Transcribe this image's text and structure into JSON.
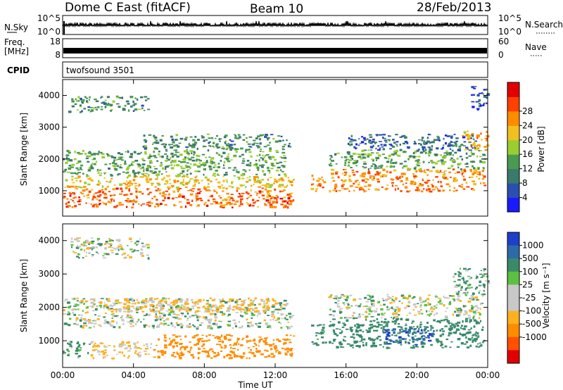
{
  "header": {
    "title": "Dome C East (fitACF)",
    "beam": "Beam 10",
    "date": "28/Feb/2013"
  },
  "panels": {
    "nsky": {
      "label": "N.Sky",
      "left_ticks": [
        "10^5",
        "10^0"
      ],
      "right_label": "N.Search",
      "right_ticks": [
        "10^5",
        "10^0"
      ]
    },
    "freq": {
      "label_line1": "Freq.",
      "label_line2": "[MHz]",
      "left_ticks": [
        "18",
        "8"
      ],
      "right_label": "Nave",
      "right_ticks": [
        "60",
        "0"
      ]
    },
    "cpid": {
      "label": "CPID",
      "value": "twofsound 3501"
    }
  },
  "power_panel": {
    "ylabel": "Slant Range [km]",
    "y_ticks": [
      "1000",
      "2000",
      "3000",
      "4000"
    ]
  },
  "velocity_panel": {
    "ylabel": "Slant Range [km]",
    "y_ticks": [
      "1000",
      "2000",
      "3000",
      "4000"
    ]
  },
  "power_scale": {
    "label": "Power [dB]",
    "ticks": [
      "4",
      "8",
      "12",
      "16",
      "20",
      "24",
      "28"
    ],
    "colors": [
      "#1a1aff",
      "#2a4fb0",
      "#3a7a6a",
      "#4a9a52",
      "#9acd32",
      "#f0c020",
      "#ff8c00",
      "#ff4000",
      "#e00000"
    ]
  },
  "velocity_scale": {
    "label": "Velocity [m s⁻¹]",
    "ticks": [
      "1000",
      "500",
      "100",
      "25",
      "-25",
      "-100",
      "-500",
      "-1000"
    ],
    "colors": [
      "#1e3fc8",
      "#2e6aa8",
      "#3a8a6a",
      "#5cc040",
      "#c8c8c8",
      "#c8c8c8",
      "#ffb020",
      "#ff8c00",
      "#ff5000",
      "#e00000"
    ]
  },
  "time_axis": {
    "label": "Time UT",
    "ticks": [
      "00:00",
      "04:00",
      "08:00",
      "12:00",
      "16:00",
      "20:00",
      "00:00"
    ]
  },
  "chart_data": [
    {
      "type": "heatmap",
      "title": "",
      "xlabel": "",
      "ylabel": "Slant Range [km]",
      "x_range": [
        "00:00",
        "24:00"
      ],
      "ylim": [
        200,
        4500
      ],
      "colorbar": {
        "label": "Power [dB]",
        "range": [
          0,
          32
        ]
      },
      "regions": [
        {
          "t0": 0.0,
          "t1": 13.0,
          "r0": 500,
          "r1": 1100,
          "value": 28
        },
        {
          "t0": 0.0,
          "t1": 13.0,
          "r0": 1100,
          "r1": 1500,
          "value": 22
        },
        {
          "t0": 0.0,
          "t1": 12.5,
          "r0": 1500,
          "r1": 2300,
          "value": 14
        },
        {
          "t0": 4.5,
          "t1": 12.8,
          "r0": 2300,
          "r1": 2800,
          "value": 12
        },
        {
          "t0": 0.3,
          "t1": 4.8,
          "r0": 3500,
          "r1": 4000,
          "value": 12
        },
        {
          "t0": 14.0,
          "t1": 14.8,
          "r0": 1000,
          "r1": 1600,
          "value": 26
        },
        {
          "t0": 15.0,
          "t1": 23.8,
          "r0": 1000,
          "r1": 1700,
          "value": 26
        },
        {
          "t0": 15.0,
          "t1": 23.8,
          "r0": 1700,
          "r1": 2300,
          "value": 14
        },
        {
          "t0": 16.0,
          "t1": 23.5,
          "r0": 2300,
          "r1": 2800,
          "value": 8
        },
        {
          "t0": 22.5,
          "t1": 24.0,
          "r0": 2300,
          "r1": 2900,
          "value": 24
        },
        {
          "t0": 23.0,
          "t1": 24.0,
          "r0": 3600,
          "r1": 4300,
          "value": 6
        }
      ]
    },
    {
      "type": "heatmap",
      "title": "",
      "xlabel": "Time UT",
      "ylabel": "Slant Range [km]",
      "x_range": [
        "00:00",
        "24:00"
      ],
      "ylim": [
        200,
        4500
      ],
      "colorbar": {
        "label": "Velocity [m s⁻¹]",
        "range": [
          -1000,
          1000
        ]
      },
      "regions": [
        {
          "t0": 0.0,
          "t1": 1.5,
          "r0": 500,
          "r1": 1000,
          "value": 100
        },
        {
          "t0": 1.5,
          "t1": 5.0,
          "r0": 500,
          "r1": 1000,
          "value": -100
        },
        {
          "t0": 5.0,
          "t1": 13.0,
          "r0": 500,
          "r1": 1200,
          "value": -500
        },
        {
          "t0": 0.0,
          "t1": 13.0,
          "r0": 1400,
          "r1": 2300,
          "value": 0
        },
        {
          "t0": 2.0,
          "t1": 12.0,
          "r0": 1900,
          "r1": 2300,
          "value": -100
        },
        {
          "t0": 0.3,
          "t1": 4.8,
          "r0": 3500,
          "r1": 4100,
          "value": 0
        },
        {
          "t0": 14.0,
          "t1": 14.8,
          "r0": 900,
          "r1": 1500,
          "value": 100
        },
        {
          "t0": 15.0,
          "t1": 23.8,
          "r0": 800,
          "r1": 1700,
          "value": 200
        },
        {
          "t0": 18.0,
          "t1": 21.0,
          "r0": 900,
          "r1": 1400,
          "value": 700
        },
        {
          "t0": 15.0,
          "t1": 23.8,
          "r0": 1700,
          "r1": 2400,
          "value": 0
        },
        {
          "t0": 22.0,
          "t1": 24.0,
          "r0": 2400,
          "r1": 3200,
          "value": 100
        }
      ]
    }
  ]
}
